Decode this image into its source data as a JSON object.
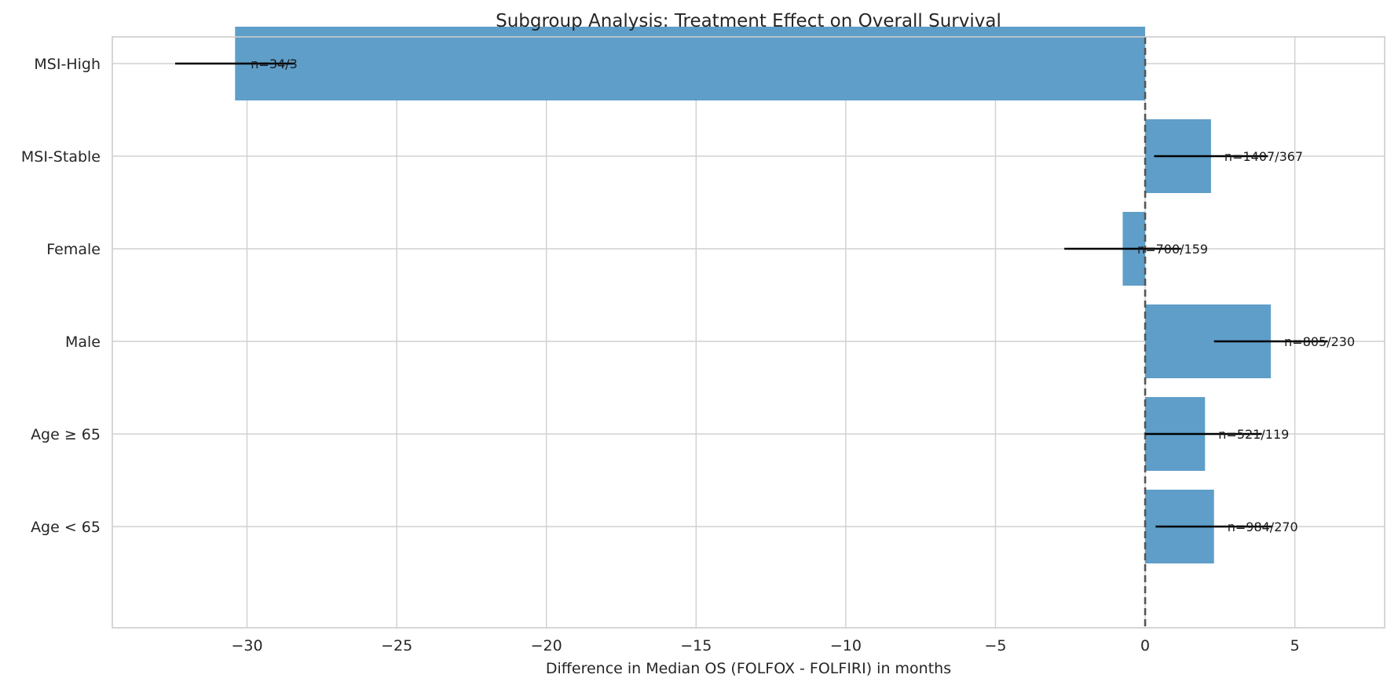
{
  "chart_data": {
    "type": "bar",
    "orientation": "horizontal",
    "title": "Subgroup Analysis: Treatment Effect on Overall Survival",
    "xlabel": "Difference in Median OS (FOLFOX - FOLFIRI) in months",
    "ylabel": "",
    "xlim": [
      -34.5,
      8.0
    ],
    "xticks": [
      -30,
      -25,
      -20,
      -15,
      -10,
      -5,
      0,
      5
    ],
    "xtick_labels": [
      "−30",
      "−25",
      "−20",
      "−15",
      "−10",
      "−5",
      "0",
      "5"
    ],
    "grid": true,
    "reference_line": {
      "x": 0,
      "style": "dashed"
    },
    "bar_color": "#5f9ec9",
    "error_color": "#000000",
    "categories": [
      "MSI-High",
      "MSI-Stable",
      "Female",
      "Male",
      "Age ≥ 65",
      "Age < 65"
    ],
    "values": [
      -30.4,
      2.2,
      -0.75,
      4.2,
      2.0,
      2.3
    ],
    "ci_lower": [
      -32.4,
      0.3,
      -2.7,
      2.3,
      0.0,
      0.35
    ],
    "ci_upper": [
      -28.4,
      4.1,
      1.2,
      6.1,
      3.9,
      4.25
    ],
    "labels": [
      "n=34/3",
      "n=1407/367",
      "n=700/159",
      "n=805/230",
      "n=521/119",
      "n=984/270"
    ]
  }
}
